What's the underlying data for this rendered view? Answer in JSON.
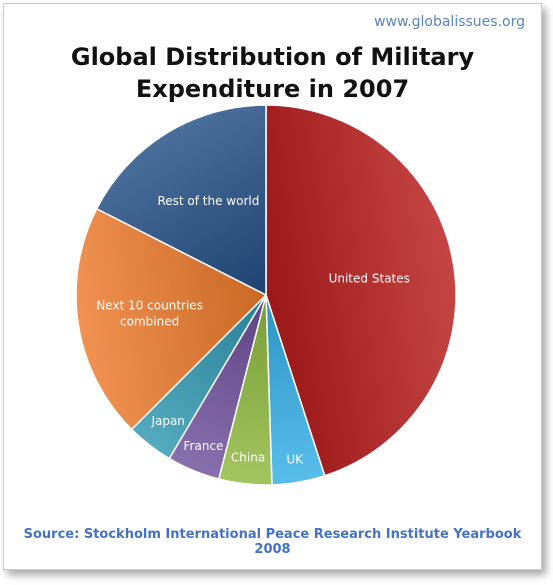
{
  "site_url": "www.globalissues.org",
  "source": "Source: Stockholm International Peace Research Institute Yearbook 2008",
  "chart_data": {
    "type": "pie",
    "title_lines": [
      "Global Distribution of Military",
      "Expenditure in 2007"
    ],
    "start": "12 o'clock",
    "direction": "clockwise",
    "slices": [
      {
        "label": "United States",
        "value": 45.0,
        "color": "#b81c1c"
      },
      {
        "label": "UK",
        "value": 4.5,
        "color": "#33aee6"
      },
      {
        "label": "China",
        "value": 4.5,
        "color": "#8db83d"
      },
      {
        "label": "France",
        "value": 4.5,
        "color": "#6e4f9b"
      },
      {
        "label": "Japan",
        "value": 4.0,
        "color": "#2f97b0"
      },
      {
        "label": "Next 10 countries combined",
        "label_lines": [
          "Next 10 countries",
          "combined"
        ],
        "value": 20.0,
        "color": "#ee7a2c"
      },
      {
        "label": "Rest of the world",
        "value": 17.5,
        "color": "#234f86"
      }
    ]
  }
}
